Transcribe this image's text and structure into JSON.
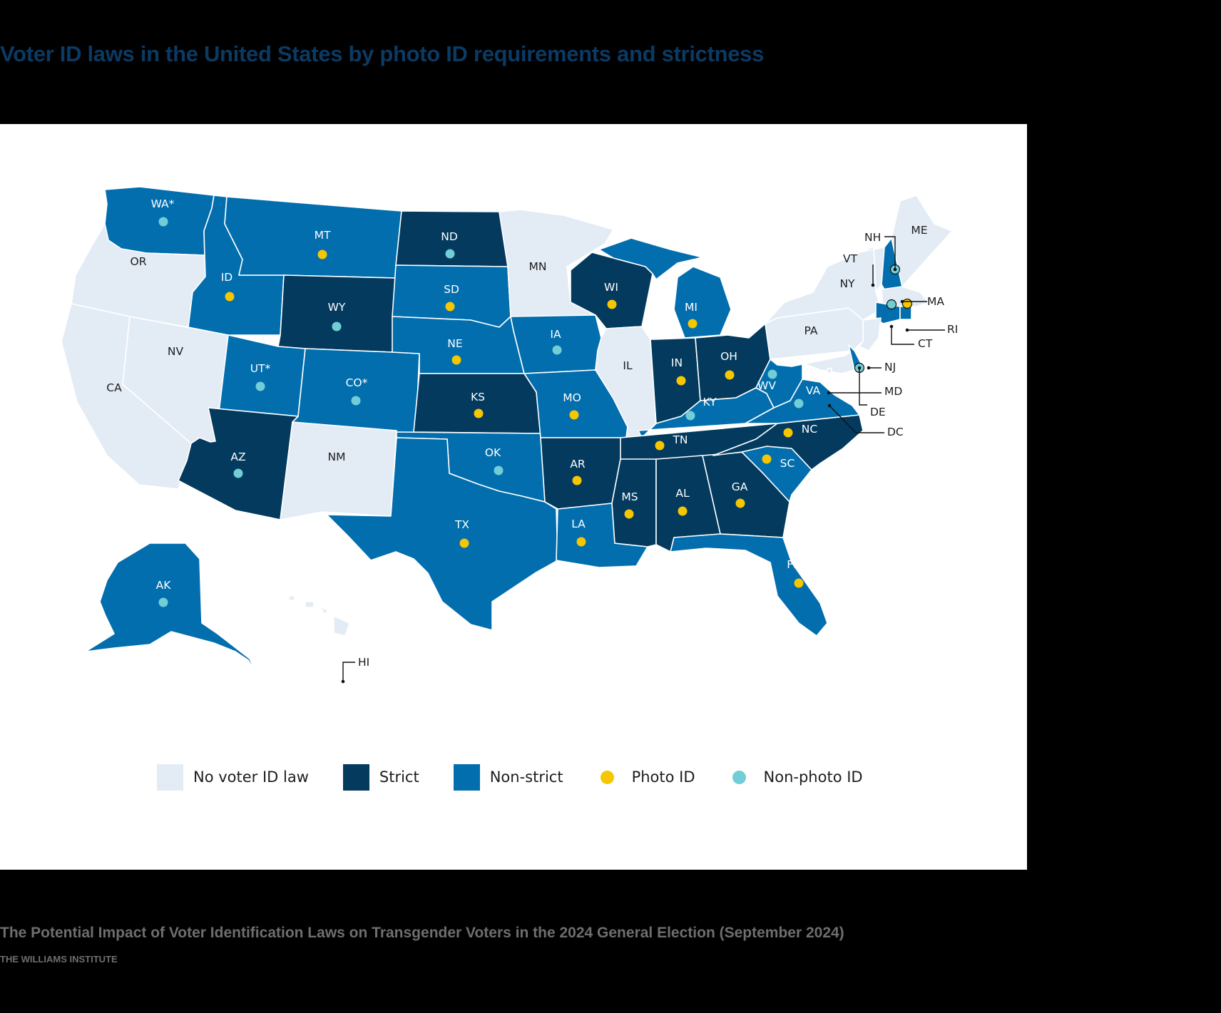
{
  "title": "Voter ID laws in the United States by photo ID requirements and strictness",
  "colors": {
    "none": "#e3ebf5",
    "strict": "#033a5d",
    "nonstrict": "#026eae",
    "photo": "#f6c600",
    "nonphoto": "#71ced6",
    "background": "#000000",
    "panel": "#ffffff"
  },
  "legend": {
    "none": "No voter ID law",
    "strict": "Strict",
    "nonstrict": "Non-strict",
    "photo": "Photo ID",
    "nonphoto": "Non-photo ID"
  },
  "states": {
    "WA": {
      "label": "WA*",
      "law": "nonstrict",
      "id": "nonphoto"
    },
    "OR": {
      "label": "OR",
      "law": "none"
    },
    "CA": {
      "label": "CA",
      "law": "none"
    },
    "NV": {
      "label": "NV",
      "law": "none"
    },
    "ID": {
      "label": "ID",
      "law": "nonstrict",
      "id": "photo"
    },
    "MT": {
      "label": "MT",
      "law": "nonstrict",
      "id": "photo"
    },
    "WY": {
      "label": "WY",
      "law": "strict",
      "id": "nonphoto"
    },
    "UT": {
      "label": "UT*",
      "law": "nonstrict",
      "id": "nonphoto"
    },
    "CO": {
      "label": "CO*",
      "law": "nonstrict",
      "id": "nonphoto"
    },
    "AZ": {
      "label": "AZ",
      "law": "strict",
      "id": "nonphoto"
    },
    "NM": {
      "label": "NM",
      "law": "none"
    },
    "ND": {
      "label": "ND",
      "law": "strict",
      "id": "nonphoto"
    },
    "SD": {
      "label": "SD",
      "law": "nonstrict",
      "id": "photo"
    },
    "NE": {
      "label": "NE",
      "law": "nonstrict",
      "id": "photo"
    },
    "KS": {
      "label": "KS",
      "law": "strict",
      "id": "photo"
    },
    "OK": {
      "label": "OK",
      "law": "nonstrict",
      "id": "nonphoto"
    },
    "TX": {
      "label": "TX",
      "law": "nonstrict",
      "id": "photo"
    },
    "MN": {
      "label": "MN",
      "law": "none"
    },
    "IA": {
      "label": "IA",
      "law": "nonstrict",
      "id": "nonphoto"
    },
    "MO": {
      "label": "MO",
      "law": "nonstrict",
      "id": "photo"
    },
    "AR": {
      "label": "AR",
      "law": "strict",
      "id": "photo"
    },
    "LA": {
      "label": "LA",
      "law": "nonstrict",
      "id": "photo"
    },
    "WI": {
      "label": "WI",
      "law": "strict",
      "id": "photo"
    },
    "IL": {
      "label": "IL",
      "law": "none"
    },
    "MI": {
      "label": "MI",
      "law": "nonstrict",
      "id": "photo"
    },
    "IN": {
      "label": "IN",
      "law": "strict",
      "id": "photo"
    },
    "OH": {
      "label": "OH",
      "law": "strict",
      "id": "photo"
    },
    "KY": {
      "label": "KY",
      "law": "nonstrict",
      "id": "nonphoto"
    },
    "TN": {
      "label": "TN",
      "law": "strict",
      "id": "photo"
    },
    "MS": {
      "label": "MS",
      "law": "strict",
      "id": "photo"
    },
    "AL": {
      "label": "AL",
      "law": "strict",
      "id": "photo"
    },
    "GA": {
      "label": "GA",
      "law": "strict",
      "id": "photo"
    },
    "FL": {
      "label": "FL",
      "law": "nonstrict",
      "id": "photo"
    },
    "SC": {
      "label": "SC",
      "law": "nonstrict",
      "id": "photo"
    },
    "NC": {
      "label": "NC",
      "law": "strict",
      "id": "photo"
    },
    "VA": {
      "label": "VA",
      "law": "nonstrict",
      "id": "nonphoto"
    },
    "WV": {
      "label": "WV",
      "law": "nonstrict",
      "id": "nonphoto"
    },
    "PA": {
      "label": "PA",
      "law": "none"
    },
    "NY": {
      "label": "NY",
      "law": "none"
    },
    "VT": {
      "label": "VT",
      "law": "none"
    },
    "NH": {
      "label": "NH",
      "law": "nonstrict",
      "id": "nonphoto"
    },
    "ME": {
      "label": "ME",
      "law": "none"
    },
    "MA": {
      "label": "MA",
      "law": "none"
    },
    "RI": {
      "label": "RI",
      "law": "nonstrict",
      "id": "photo"
    },
    "CT": {
      "label": "CT",
      "law": "nonstrict",
      "id": "nonphoto"
    },
    "NJ": {
      "label": "NJ",
      "law": "none"
    },
    "DE": {
      "label": "DE",
      "law": "nonstrict",
      "id": "nonphoto"
    },
    "MD": {
      "label": "MD",
      "law": "none"
    },
    "DC": {
      "label": "DC",
      "law": "none"
    },
    "AK": {
      "label": "AK",
      "law": "nonstrict",
      "id": "nonphoto"
    },
    "HI": {
      "label": "HI",
      "law": "none"
    }
  },
  "source": "The Potential Impact of Voter Identification Laws on Transgender Voters in the 2024 General Election (September 2024)",
  "credit": "THE WILLIAMS INSTITUTE"
}
